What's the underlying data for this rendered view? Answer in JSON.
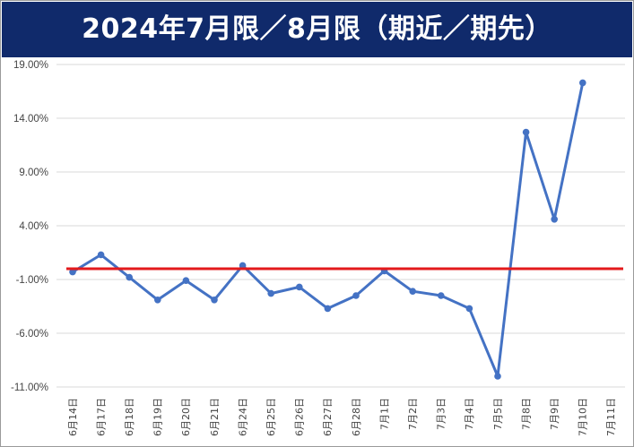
{
  "title": "2024年7月限／8月限（期近／期先）",
  "colors": {
    "title_bg": "#102a6b",
    "title_text": "#ffffff",
    "series_line": "#4472c4",
    "reference_line": "#e31a1c",
    "grid": "#d9d9d9"
  },
  "chart_data": {
    "type": "line",
    "title": "2024年7月限／8月限（期近／期先）",
    "xlabel": "",
    "ylabel": "",
    "ylim": [
      -11.0,
      19.0
    ],
    "y_ticks": [
      19.0,
      14.0,
      9.0,
      4.0,
      -1.0,
      -6.0,
      -11.0
    ],
    "y_tick_labels": [
      "19.00%",
      "14.00%",
      "9.00%",
      "4.00%",
      "-1.00%",
      "-6.00%",
      "-11.00%"
    ],
    "grid": true,
    "categories": [
      "6月14日",
      "6月17日",
      "6月18日",
      "6月19日",
      "6月20日",
      "6月21日",
      "6月24日",
      "6月25日",
      "6月26日",
      "6月27日",
      "6月28日",
      "7月1日",
      "7月2日",
      "7月3日",
      "7月4日",
      "7月5日",
      "7月8日",
      "7月9日",
      "7月10日",
      "7月11日"
    ],
    "series": [
      {
        "values": [
          -0.3,
          1.3,
          -0.8,
          -2.9,
          -1.1,
          -2.9,
          0.3,
          -2.3,
          -1.7,
          -3.7,
          -2.5,
          -0.2,
          -2.1,
          -2.5,
          -3.7,
          -10.0,
          12.7,
          4.6,
          17.3,
          null
        ]
      }
    ],
    "reference_line": {
      "y": 0.0
    }
  }
}
